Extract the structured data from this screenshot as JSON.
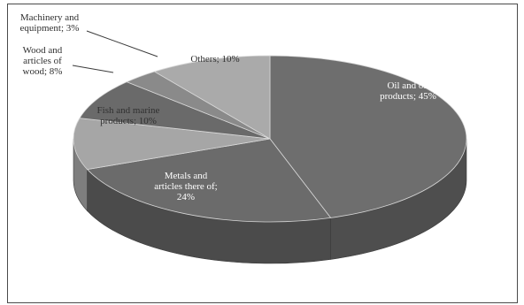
{
  "chart_data": {
    "type": "pie",
    "style": "3d",
    "slices": [
      {
        "label": "Oil and oil products",
        "value": 45,
        "text": [
          "Oil and oil",
          "products; 45%"
        ],
        "color": "#6e6e6e",
        "side": "#4e4e4e",
        "text_style": "dark"
      },
      {
        "label": "Metals and articles there of",
        "value": 24,
        "text": [
          "Metals and",
          "articles there of;",
          "24%"
        ],
        "color": "#6b6b6b",
        "side": "#4b4b4b",
        "text_style": "dark"
      },
      {
        "label": "Fish and marine products",
        "value": 10,
        "text": [
          "Fish and marine",
          "products; 10%"
        ],
        "color": "#a6a6a6",
        "side": "#7e7e7e",
        "text_style": "light"
      },
      {
        "label": "Wood and articles of wood",
        "value": 8,
        "text": [
          "Wood and",
          "articles of",
          "wood; 8%"
        ],
        "color": "#6a6a6a",
        "side": "#4a4a4a",
        "text_style": "light"
      },
      {
        "label": "Machinery and equipment",
        "value": 3,
        "text": [
          "Machinery and",
          "equipment; 3%"
        ],
        "color": "#8a8a8a",
        "side": "#666666",
        "text_style": "light"
      },
      {
        "label": "Others",
        "value": 10,
        "text": [
          "Others; 10%"
        ],
        "color": "#aaaaaa",
        "side": "#848484",
        "text_style": "light"
      }
    ]
  }
}
